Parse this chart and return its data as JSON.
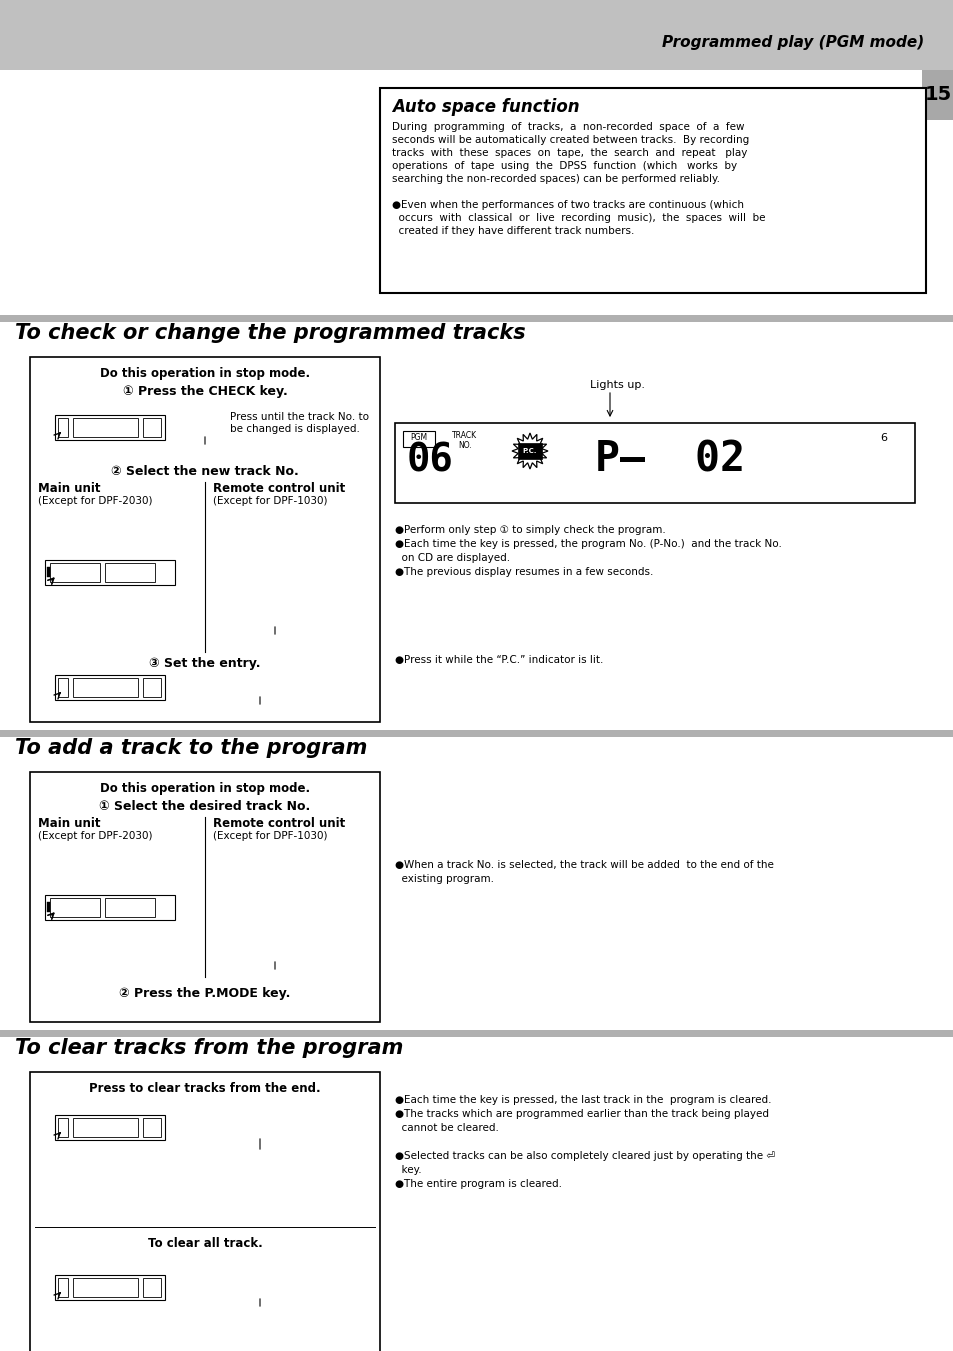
{
  "page_bg": "#ffffff",
  "header_bg": "#c0c0c0",
  "tab_bg": "#a8a8a8",
  "header_text": "Programmed play (PGM mode)",
  "page_number": "15",
  "section_bar_color": "#b0b0b0",
  "auto_space_title": "Auto space function",
  "section1_title": "To check or change the programmed tracks",
  "section2_title": "To add a track to the program",
  "section3_title": "To clear tracks from the program"
}
